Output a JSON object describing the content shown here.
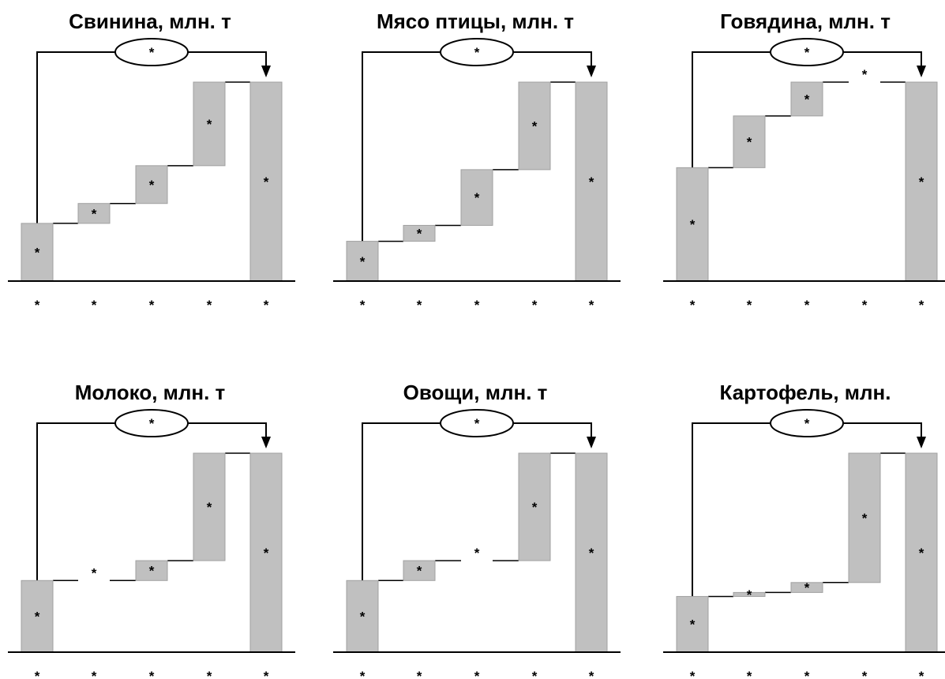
{
  "chart_data": [
    {
      "type": "waterfall",
      "title": "Свинина, млн. т",
      "categories": [
        "*",
        "*",
        "*",
        "*",
        "*"
      ],
      "steps": [
        {
          "kind": "base",
          "start": 0,
          "end": 0.29,
          "label": "*"
        },
        {
          "kind": "delta",
          "start": 0.29,
          "end": 0.39,
          "label": "*"
        },
        {
          "kind": "delta",
          "start": 0.39,
          "end": 0.58,
          "label": "*"
        },
        {
          "kind": "delta",
          "start": 0.58,
          "end": 1.0,
          "label": "*"
        },
        {
          "kind": "total",
          "start": 0,
          "end": 1.0,
          "label": "*"
        }
      ],
      "change_label": "*"
    },
    {
      "type": "waterfall",
      "title": "Мясо птицы, млн. т",
      "categories": [
        "*",
        "*",
        "*",
        "*",
        "*"
      ],
      "steps": [
        {
          "kind": "base",
          "start": 0,
          "end": 0.2,
          "label": "*"
        },
        {
          "kind": "delta",
          "start": 0.2,
          "end": 0.28,
          "label": "*"
        },
        {
          "kind": "delta",
          "start": 0.28,
          "end": 0.56,
          "label": "*"
        },
        {
          "kind": "delta",
          "start": 0.56,
          "end": 1.0,
          "label": "*"
        },
        {
          "kind": "total",
          "start": 0,
          "end": 1.0,
          "label": "*"
        }
      ],
      "change_label": "*"
    },
    {
      "type": "waterfall",
      "title": "Говядина, млн. т",
      "categories": [
        "*",
        "*",
        "*",
        "*",
        "*"
      ],
      "steps": [
        {
          "kind": "base",
          "start": 0,
          "end": 0.57,
          "label": "*"
        },
        {
          "kind": "delta",
          "start": 0.57,
          "end": 0.83,
          "label": "*"
        },
        {
          "kind": "delta",
          "start": 0.83,
          "end": 1.0,
          "label": "*"
        },
        {
          "kind": "delta",
          "start": 1.0,
          "end": 1.0,
          "label": "*"
        },
        {
          "kind": "total",
          "start": 0,
          "end": 1.0,
          "label": "*"
        }
      ],
      "change_label": "*"
    },
    {
      "type": "waterfall",
      "title": "Молоко, млн. т",
      "categories": [
        "*",
        "*",
        "*",
        "*",
        "*"
      ],
      "steps": [
        {
          "kind": "base",
          "start": 0,
          "end": 0.36,
          "label": "*"
        },
        {
          "kind": "delta",
          "start": 0.36,
          "end": 0.36,
          "label": "*"
        },
        {
          "kind": "delta",
          "start": 0.36,
          "end": 0.46,
          "label": "*"
        },
        {
          "kind": "delta",
          "start": 0.46,
          "end": 1.0,
          "label": "*"
        },
        {
          "kind": "total",
          "start": 0,
          "end": 1.0,
          "label": "*"
        }
      ],
      "change_label": "*"
    },
    {
      "type": "waterfall",
      "title": "Овощи, млн. т",
      "categories": [
        "*",
        "*",
        "*",
        "*",
        "*"
      ],
      "steps": [
        {
          "kind": "base",
          "start": 0,
          "end": 0.36,
          "label": "*"
        },
        {
          "kind": "delta",
          "start": 0.36,
          "end": 0.46,
          "label": "*"
        },
        {
          "kind": "delta",
          "start": 0.46,
          "end": 0.46,
          "label": "*"
        },
        {
          "kind": "delta",
          "start": 0.46,
          "end": 1.0,
          "label": "*"
        },
        {
          "kind": "total",
          "start": 0,
          "end": 1.0,
          "label": "*"
        }
      ],
      "change_label": "*"
    },
    {
      "type": "waterfall",
      "title": "Картофель, млн.",
      "categories": [
        "*",
        "*",
        "*",
        "*",
        "*"
      ],
      "steps": [
        {
          "kind": "base",
          "start": 0,
          "end": 0.28,
          "label": "*"
        },
        {
          "kind": "delta",
          "start": 0.28,
          "end": 0.3,
          "label": "*"
        },
        {
          "kind": "delta",
          "start": 0.3,
          "end": 0.35,
          "label": "*"
        },
        {
          "kind": "delta",
          "start": 0.35,
          "end": 1.0,
          "label": "*"
        },
        {
          "kind": "total",
          "start": 0,
          "end": 1.0,
          "label": "*"
        }
      ],
      "change_label": "*"
    }
  ],
  "colors": {
    "bar": "#c0c0c0",
    "bar_edge": "#a0a0a0",
    "line": "#000000",
    "background": "#ffffff"
  }
}
